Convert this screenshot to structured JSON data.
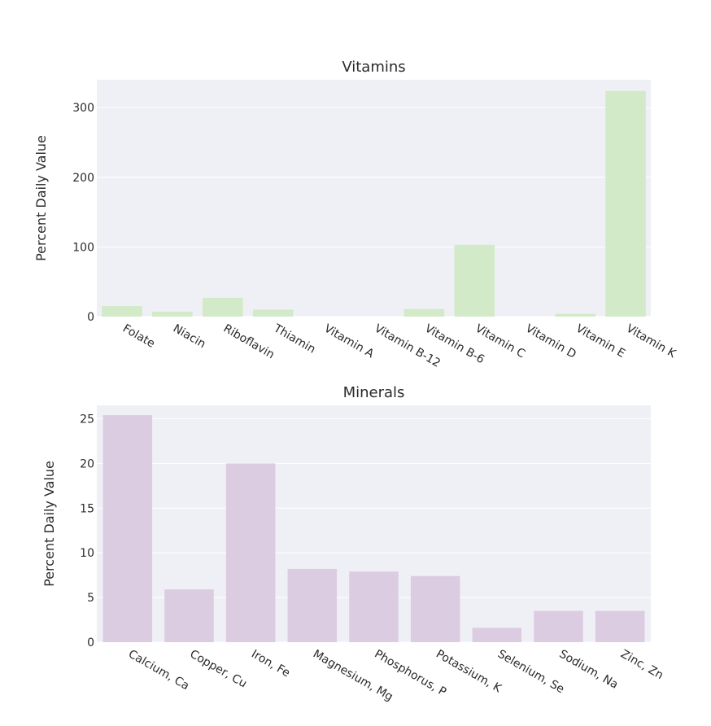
{
  "chart_data": [
    {
      "type": "bar",
      "title": "Vitamins",
      "xlabel": "",
      "ylabel": "Percent Daily Value",
      "ylim": [
        0,
        340
      ],
      "yticks": [
        0,
        100,
        200,
        300
      ],
      "grid": true,
      "bar_color": "#d2eac8",
      "categories": [
        "Folate",
        "Niacin",
        "Riboflavin",
        "Thiamin",
        "Vitamin A",
        "Vitamin B-12",
        "Vitamin B-6",
        "Vitamin C",
        "Vitamin D",
        "Vitamin E",
        "Vitamin K"
      ],
      "values": [
        15,
        7,
        27,
        10,
        0,
        0,
        11,
        103,
        0,
        4,
        324
      ]
    },
    {
      "type": "bar",
      "title": "Minerals",
      "xlabel": "",
      "ylabel": "Percent Daily Value",
      "ylim": [
        0,
        26.5
      ],
      "yticks": [
        0,
        5,
        10,
        15,
        20,
        25
      ],
      "grid": true,
      "bar_color": "#dccce2",
      "categories": [
        "Calcium, Ca",
        "Copper, Cu",
        "Iron, Fe",
        "Magnesium, Mg",
        "Phosphorus, P",
        "Potassium, K",
        "Selenium, Se",
        "Sodium, Na",
        "Zinc, Zn"
      ],
      "values": [
        25.4,
        5.9,
        20,
        8.2,
        7.9,
        7.4,
        1.6,
        3.5,
        3.5
      ]
    }
  ],
  "colors": {
    "plot_background": "#eff0f5",
    "grid": "#ffffff"
  }
}
